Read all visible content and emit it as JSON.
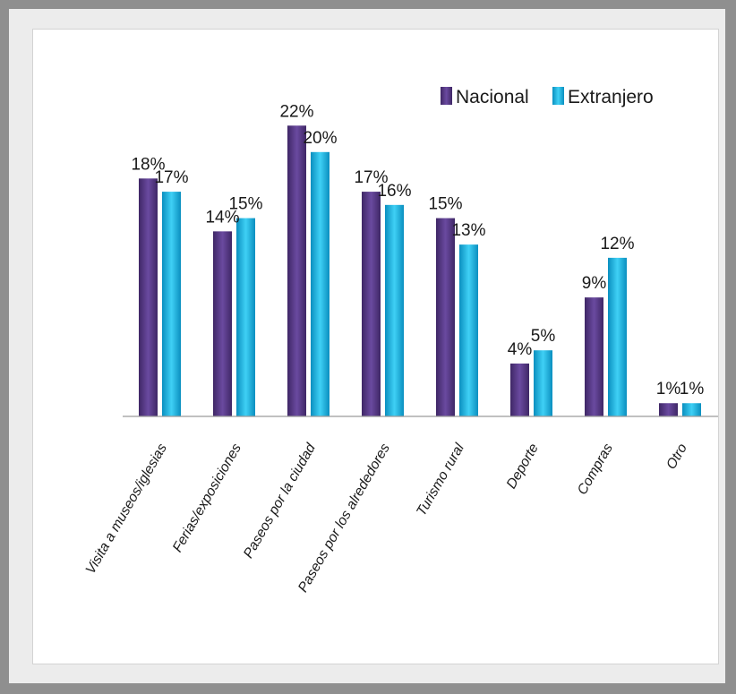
{
  "chart_data": {
    "type": "bar",
    "categories": [
      "Visita a museos/iglesias",
      "Ferias/exposiciones",
      "Paseos por la ciudad",
      "Paseos por los alrededores",
      "Turismo rural",
      "Deporte",
      "Compras",
      "Otro"
    ],
    "series": [
      {
        "name": "Nacional",
        "values": [
          18,
          14,
          22,
          17,
          15,
          4,
          9,
          1
        ],
        "labels": [
          "18%",
          "14%",
          "22%",
          "17%",
          "15%",
          "4%",
          "9%",
          "1%"
        ],
        "color": "#5b3d8c"
      },
      {
        "name": "Extranjero",
        "values": [
          17,
          15,
          20,
          16,
          13,
          5,
          12,
          1
        ],
        "labels": [
          "17%",
          "15%",
          "20%",
          "16%",
          "13%",
          "5%",
          "12%",
          "1%"
        ],
        "color": "#19b5e0"
      }
    ],
    "unit": "%",
    "ylim": [
      0,
      25
    ],
    "legend_position": "top-right",
    "grid": false
  }
}
